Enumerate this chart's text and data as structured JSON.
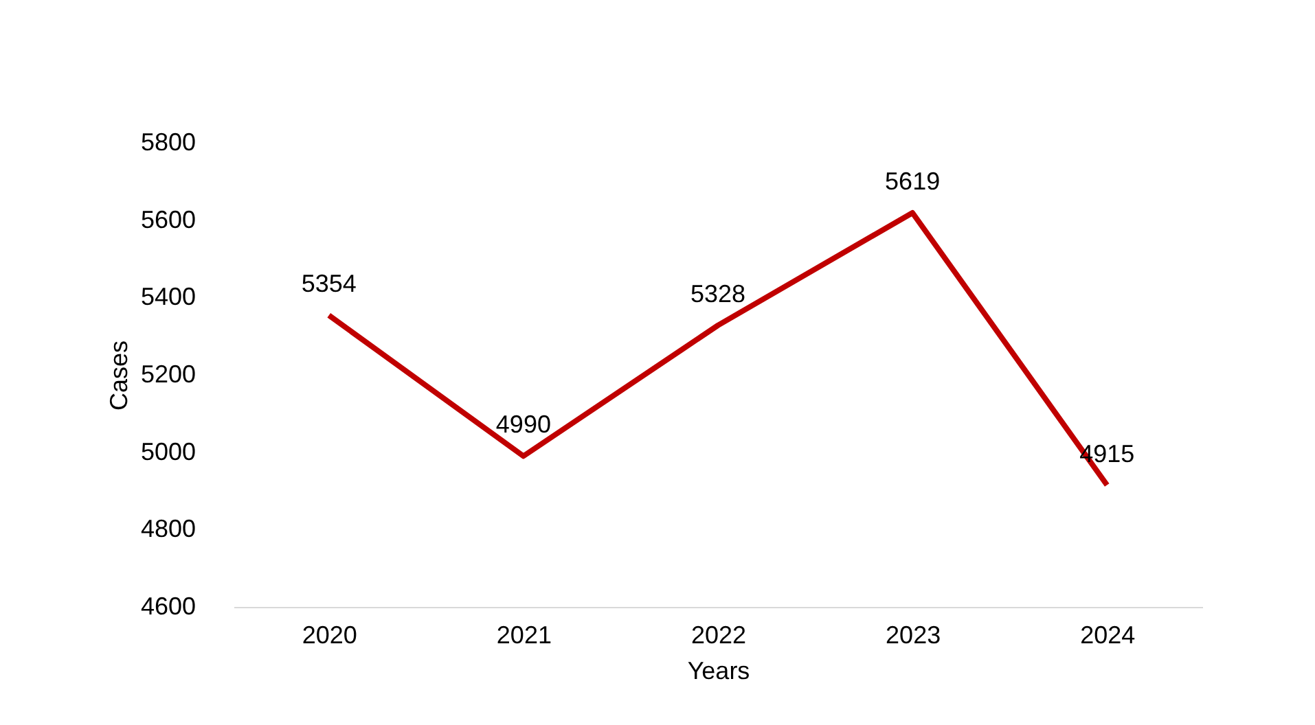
{
  "chart_data": {
    "type": "line",
    "xlabel": "Years",
    "ylabel": "Cases",
    "categories": [
      "2020",
      "2021",
      "2022",
      "2023",
      "2024"
    ],
    "series": [
      {
        "color": "#c00000",
        "values": [
          5354,
          4990,
          5328,
          5619,
          4915
        ]
      }
    ],
    "ylim": [
      4600,
      5800
    ],
    "yticks": [
      4600,
      4800,
      5000,
      5200,
      5400,
      5600,
      5800
    ],
    "data_labels": true,
    "grid": false,
    "marker": "none",
    "line_style": "solid"
  }
}
